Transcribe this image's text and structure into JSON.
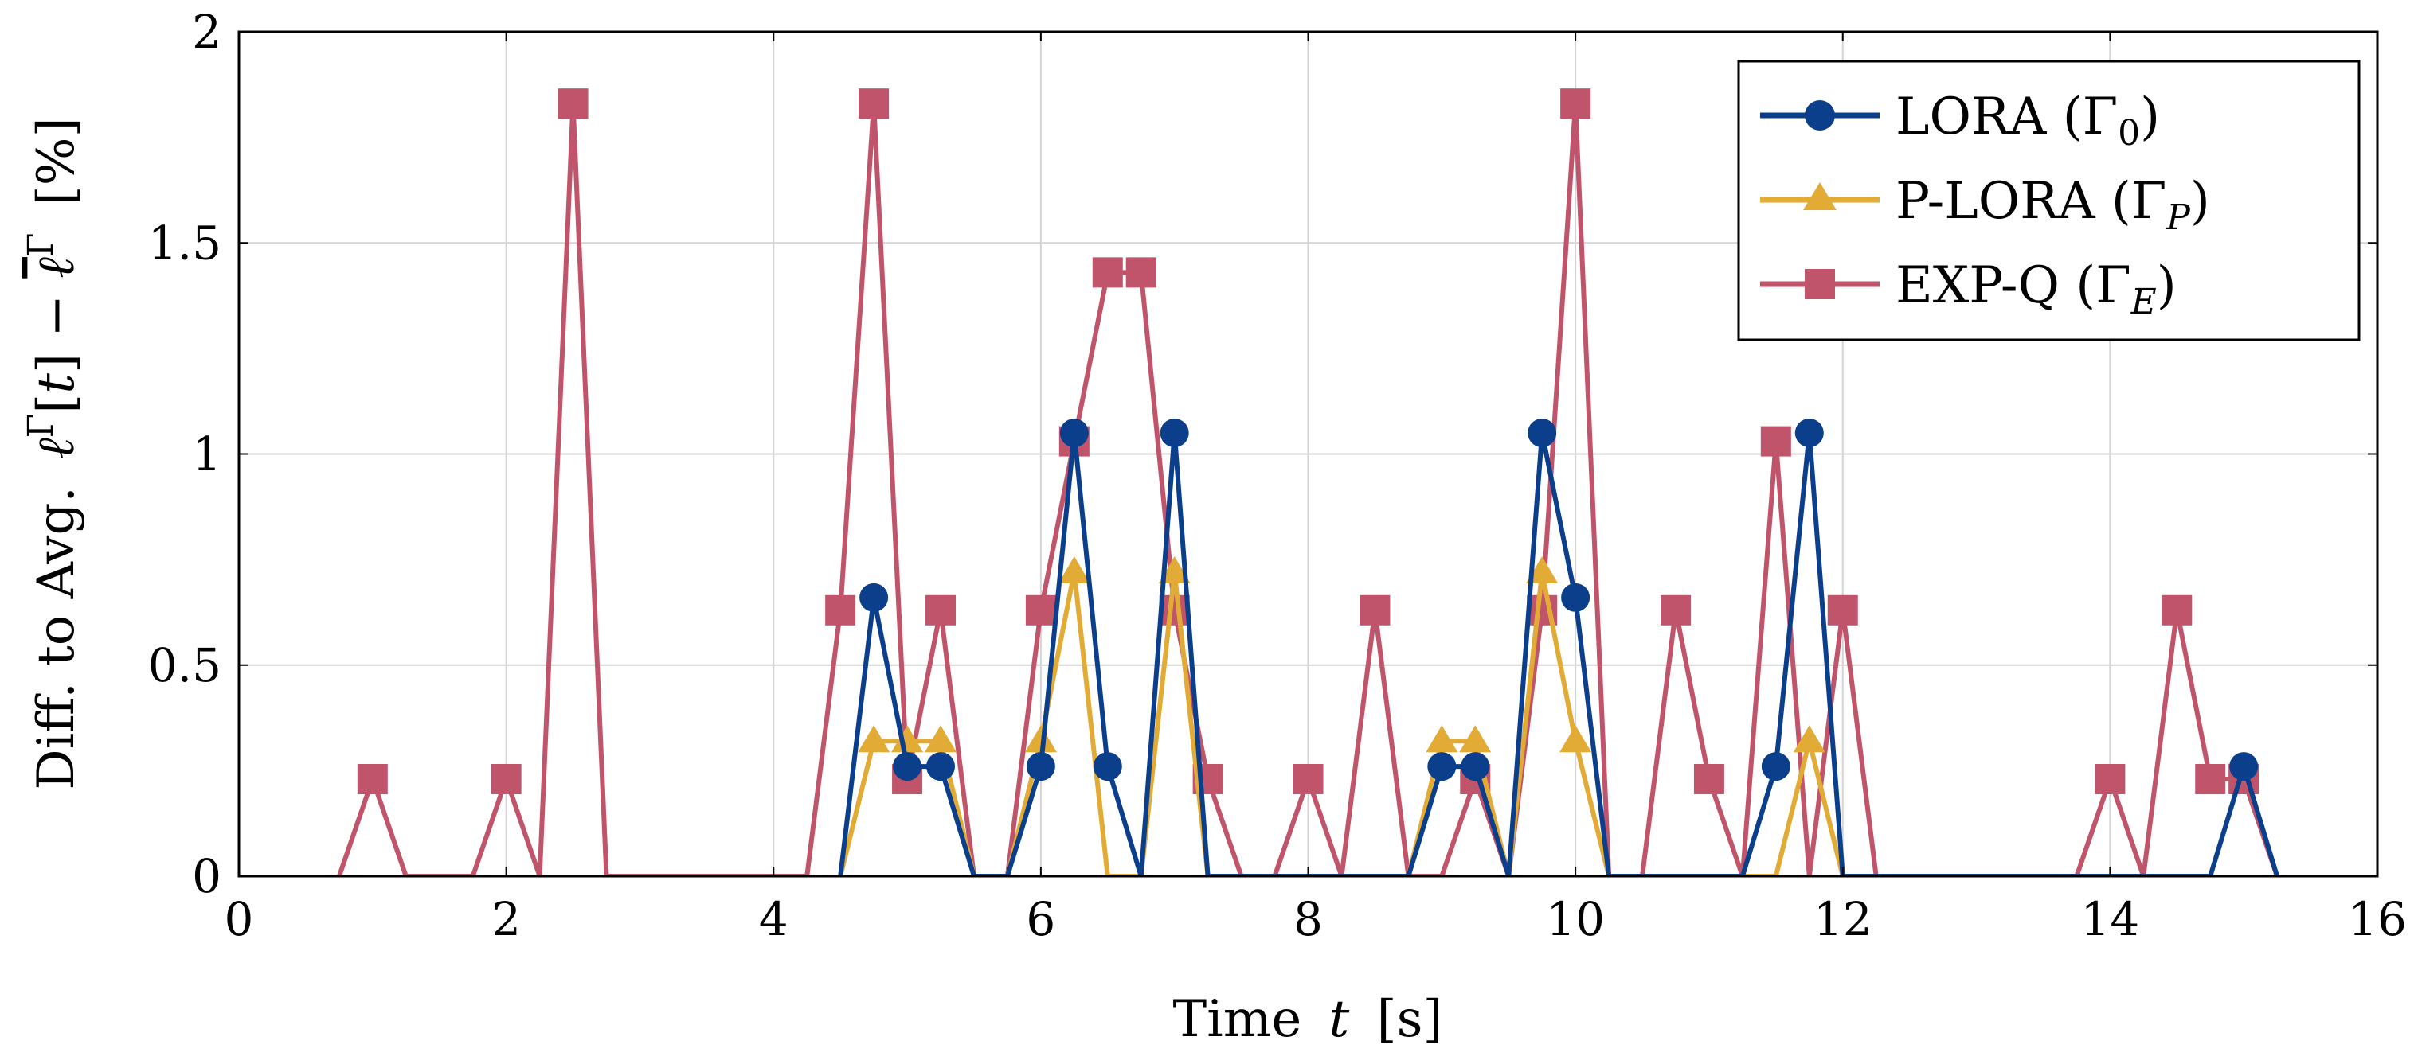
{
  "chart_data": {
    "type": "line",
    "title": "",
    "xlabel": "Time",
    "xlabel_symbol": "t",
    "xlabel_unit": "[s]",
    "ylabel": "Diff. to Avg.",
    "ylabel_unit": "[%]",
    "xlim": [
      0,
      16
    ],
    "ylim": [
      0,
      2
    ],
    "xticks": [
      0,
      2,
      4,
      6,
      8,
      10,
      12,
      14,
      16
    ],
    "yticks": [
      0,
      0.5,
      1,
      1.5,
      2
    ],
    "xtick_labels": [
      "0",
      "2",
      "4",
      "6",
      "8",
      "10",
      "12",
      "14",
      "16"
    ],
    "ytick_labels": [
      "0",
      "0.5",
      "1",
      "1.5",
      "2"
    ],
    "grid": true,
    "legend_position": "top-right",
    "series": [
      {
        "name": "LORA",
        "gamma_sub": "0",
        "color": "#0b3f8c",
        "marker": "circle",
        "points": [
          [
            4.5,
            0
          ],
          [
            4.75,
            0.66
          ],
          [
            5,
            0.26
          ],
          [
            5.25,
            0.26
          ],
          [
            5.5,
            0
          ],
          [
            5.75,
            0
          ],
          [
            6,
            0.26
          ],
          [
            6.25,
            1.05
          ],
          [
            6.5,
            0.26
          ],
          [
            6.75,
            0
          ],
          [
            7,
            1.05
          ],
          [
            7.25,
            0
          ],
          [
            8.75,
            0
          ],
          [
            9,
            0.26
          ],
          [
            9.25,
            0.26
          ],
          [
            9.5,
            0
          ],
          [
            9.75,
            1.05
          ],
          [
            10,
            0.66
          ],
          [
            10.25,
            0
          ],
          [
            11.25,
            0
          ],
          [
            11.5,
            0.26
          ],
          [
            11.75,
            1.05
          ],
          [
            12,
            0
          ],
          [
            14.75,
            0
          ],
          [
            15,
            0.26
          ],
          [
            15.25,
            0
          ]
        ]
      },
      {
        "name": "P-LORA",
        "gamma_sub": "P",
        "color": "#e2ab36",
        "marker": "triangle",
        "points": [
          [
            4.5,
            0
          ],
          [
            4.75,
            0.32
          ],
          [
            5,
            0.32
          ],
          [
            5.25,
            0.32
          ],
          [
            5.5,
            0
          ],
          [
            5.75,
            0
          ],
          [
            6,
            0.32
          ],
          [
            6.25,
            0.72
          ],
          [
            6.5,
            0
          ],
          [
            6.75,
            0
          ],
          [
            7,
            0.72
          ],
          [
            7.25,
            0
          ],
          [
            8.75,
            0
          ],
          [
            9,
            0.32
          ],
          [
            9.25,
            0.32
          ],
          [
            9.5,
            0
          ],
          [
            9.75,
            0.72
          ],
          [
            10,
            0.32
          ],
          [
            10.25,
            0
          ],
          [
            11.5,
            0
          ],
          [
            11.75,
            0.32
          ],
          [
            12,
            0
          ]
        ]
      },
      {
        "name": "EXP-Q",
        "gamma_sub": "E",
        "color": "#c0546b",
        "marker": "square",
        "points": [
          [
            0.75,
            0
          ],
          [
            1,
            0.23
          ],
          [
            1.25,
            0
          ],
          [
            1.75,
            0
          ],
          [
            2,
            0.23
          ],
          [
            2.25,
            0
          ],
          [
            2.5,
            1.83
          ],
          [
            2.75,
            0
          ],
          [
            4.25,
            0
          ],
          [
            4.5,
            0.63
          ],
          [
            4.75,
            1.83
          ],
          [
            5,
            0.23
          ],
          [
            5.25,
            0.63
          ],
          [
            5.5,
            0
          ],
          [
            5.75,
            0
          ],
          [
            6,
            0.63
          ],
          [
            6.25,
            1.03
          ],
          [
            6.5,
            1.43
          ],
          [
            6.75,
            1.43
          ],
          [
            7,
            0.63
          ],
          [
            7.25,
            0.23
          ],
          [
            7.5,
            0
          ],
          [
            7.75,
            0
          ],
          [
            8,
            0.23
          ],
          [
            8.25,
            0
          ],
          [
            8.5,
            0.63
          ],
          [
            8.75,
            0
          ],
          [
            9,
            0
          ],
          [
            9.25,
            0.23
          ],
          [
            9.5,
            0
          ],
          [
            9.75,
            0.63
          ],
          [
            10,
            1.83
          ],
          [
            10.25,
            0
          ],
          [
            10.5,
            0
          ],
          [
            10.75,
            0.63
          ],
          [
            11,
            0.23
          ],
          [
            11.25,
            0
          ],
          [
            11.5,
            1.03
          ],
          [
            11.75,
            0
          ],
          [
            12,
            0.63
          ],
          [
            12.25,
            0
          ],
          [
            13.75,
            0
          ],
          [
            14,
            0.23
          ],
          [
            14.25,
            0
          ],
          [
            14.5,
            0.63
          ],
          [
            14.75,
            0.23
          ],
          [
            15,
            0.23
          ],
          [
            15.25,
            0
          ]
        ]
      }
    ]
  }
}
